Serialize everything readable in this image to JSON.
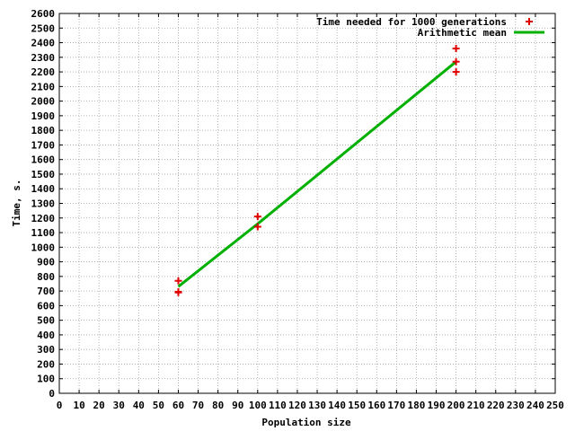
{
  "chart_data": {
    "type": "scatter",
    "xlabel": "Population size",
    "ylabel": "Time, s.",
    "xlim": [
      0,
      250
    ],
    "ylim": [
      0,
      2600
    ],
    "x_ticks": [
      0,
      10,
      20,
      30,
      40,
      50,
      60,
      70,
      80,
      90,
      100,
      110,
      120,
      130,
      140,
      150,
      160,
      170,
      180,
      190,
      200,
      210,
      220,
      230,
      240,
      250
    ],
    "y_ticks": [
      0,
      100,
      200,
      300,
      400,
      500,
      600,
      700,
      800,
      900,
      1000,
      1100,
      1200,
      1300,
      1400,
      1500,
      1600,
      1700,
      1800,
      1900,
      2000,
      2100,
      2200,
      2300,
      2400,
      2500,
      2600
    ],
    "grid": true,
    "legend_position": "top-right",
    "series": [
      {
        "name": "Time needed for 1000 generations",
        "type": "scatter",
        "marker": "plus",
        "color": "#e00000",
        "points": [
          {
            "x": 60,
            "y": 770
          },
          {
            "x": 60,
            "y": 690
          },
          {
            "x": 60,
            "y": 695
          },
          {
            "x": 100,
            "y": 1210
          },
          {
            "x": 100,
            "y": 1140
          },
          {
            "x": 200,
            "y": 2360
          },
          {
            "x": 200,
            "y": 2270
          },
          {
            "x": 200,
            "y": 2200
          }
        ]
      },
      {
        "name": "Arithmetic mean",
        "type": "line",
        "color": "#00b000",
        "points": [
          {
            "x": 60,
            "y": 730
          },
          {
            "x": 100,
            "y": 1160
          },
          {
            "x": 200,
            "y": 2270
          }
        ]
      }
    ]
  }
}
